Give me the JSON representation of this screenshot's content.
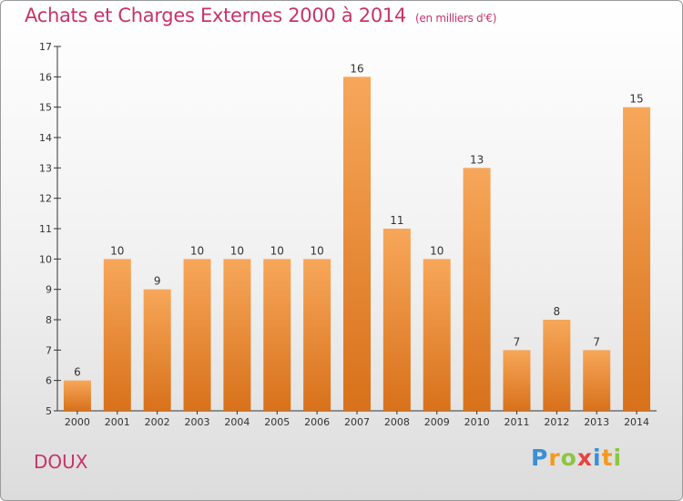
{
  "chart_data": {
    "type": "bar",
    "title": "Achats et Charges Externes 2000 à 2014",
    "unit_note": "(en milliers d'€)",
    "categories": [
      "2000",
      "2001",
      "2002",
      "2003",
      "2004",
      "2005",
      "2006",
      "2007",
      "2008",
      "2009",
      "2010",
      "2011",
      "2012",
      "2013",
      "2014"
    ],
    "values": [
      6,
      10,
      9,
      10,
      10,
      10,
      10,
      16,
      11,
      10,
      13,
      7,
      8,
      7,
      15
    ],
    "ylim": [
      5,
      17
    ],
    "yticks": [
      5,
      6,
      7,
      8,
      9,
      10,
      11,
      12,
      13,
      14,
      15,
      16,
      17
    ],
    "grid": false,
    "bar_color": "#f08a2e",
    "bar_color_light": "#f7a75a",
    "bar_color_dark": "#d8711a"
  },
  "commune": "DOUX",
  "brand": {
    "letters": [
      "P",
      "r",
      "o",
      "x",
      "i",
      "t",
      "i"
    ],
    "colors": [
      "#3a8fd6",
      "#f29a1f",
      "#8cc63f",
      "#e8423f",
      "#3a8fd6",
      "#f29a1f",
      "#8cc63f"
    ]
  },
  "colors": {
    "accent": "#c8336b"
  }
}
